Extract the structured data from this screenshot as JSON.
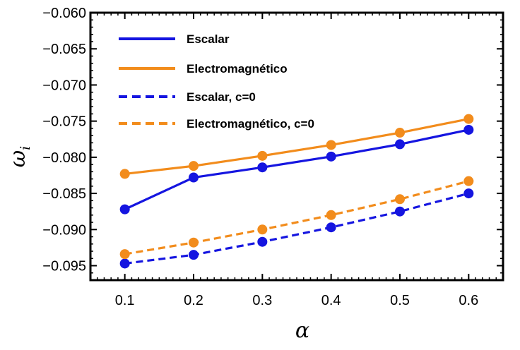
{
  "chart_data": {
    "type": "line",
    "title": "",
    "xlabel": "α",
    "ylabel": "ω",
    "ylabel_subscript": "i",
    "x": [
      0.1,
      0.2,
      0.3,
      0.4,
      0.5,
      0.6
    ],
    "xlim": [
      0.05,
      0.65
    ],
    "ylim": [
      -0.097,
      -0.06
    ],
    "xticks": [
      "0.1",
      "0.2",
      "0.3",
      "0.4",
      "0.5",
      "0.6"
    ],
    "yticks": [
      "−0.060",
      "−0.065",
      "−0.070",
      "−0.075",
      "−0.080",
      "−0.085",
      "−0.090",
      "−0.095"
    ],
    "xtick_values": [
      0.1,
      0.2,
      0.3,
      0.4,
      0.5,
      0.6
    ],
    "ytick_values": [
      -0.06,
      -0.065,
      -0.07,
      -0.075,
      -0.08,
      -0.085,
      -0.09,
      -0.095
    ],
    "grid": false,
    "legend_position": "top-left",
    "series": [
      {
        "name": "Escalar",
        "color": "#1515e0",
        "dash": false,
        "values": [
          -0.0872,
          -0.0828,
          -0.0814,
          -0.0799,
          -0.0782,
          -0.0762
        ]
      },
      {
        "name": "Electromagnético",
        "color": "#f28c1c",
        "dash": false,
        "values": [
          -0.0823,
          -0.0812,
          -0.0798,
          -0.0783,
          -0.0766,
          -0.0747
        ]
      },
      {
        "name": "Escalar, c=0",
        "color": "#1515e0",
        "dash": true,
        "values": [
          -0.0947,
          -0.0935,
          -0.0917,
          -0.0897,
          -0.0875,
          -0.085
        ]
      },
      {
        "name": "Electromagnético, c=0",
        "color": "#f28c1c",
        "dash": true,
        "values": [
          -0.0934,
          -0.0918,
          -0.09,
          -0.088,
          -0.0858,
          -0.0833
        ]
      }
    ]
  }
}
